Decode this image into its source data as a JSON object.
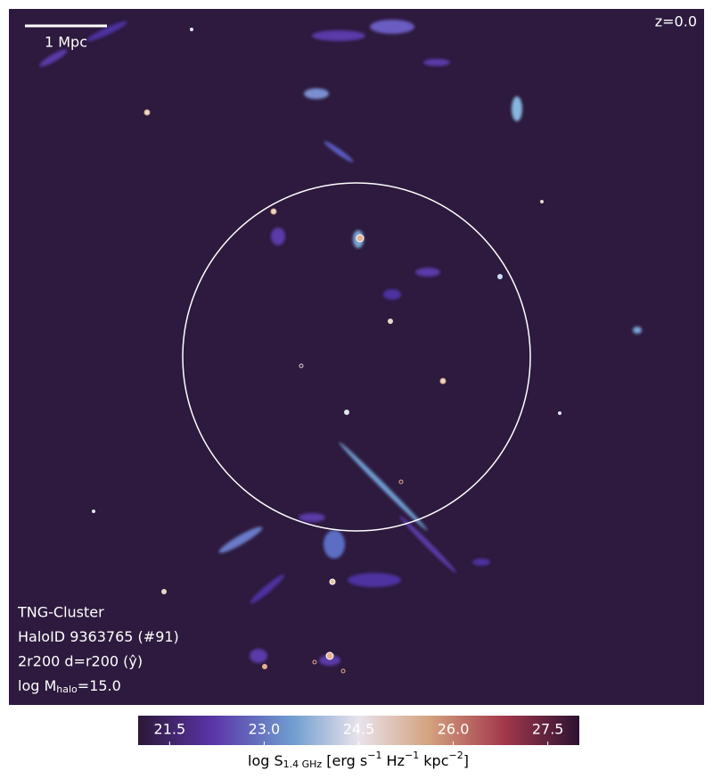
{
  "chart_data": {
    "type": "image",
    "scale_bar": "1 Mpc",
    "redshift": "z=0.0",
    "info": [
      "TNG-Cluster",
      "HaloID 9363765 (#91)",
      "2r200 d=r200 (ŷ)"
    ],
    "mass_label": {
      "text": "log M",
      "sub": "halo",
      "rest": "=15.0"
    },
    "colorbar": {
      "label": {
        "text": "log S",
        "sub": "1.4 GHz",
        "part2": " [erg s",
        "sup1": "−1",
        "part3": " Hz",
        "sup2": "−1",
        "part4": " kpc",
        "sup3": "−2",
        "part5": "]"
      },
      "lim": [
        21.0,
        28.0
      ],
      "ticks": [
        21.5,
        {
          "value": 23.0,
          "label": "23.0"
        },
        24.5,
        {
          "value": 26.0,
          "label": "26.0"
        },
        27.5
      ]
    }
  }
}
